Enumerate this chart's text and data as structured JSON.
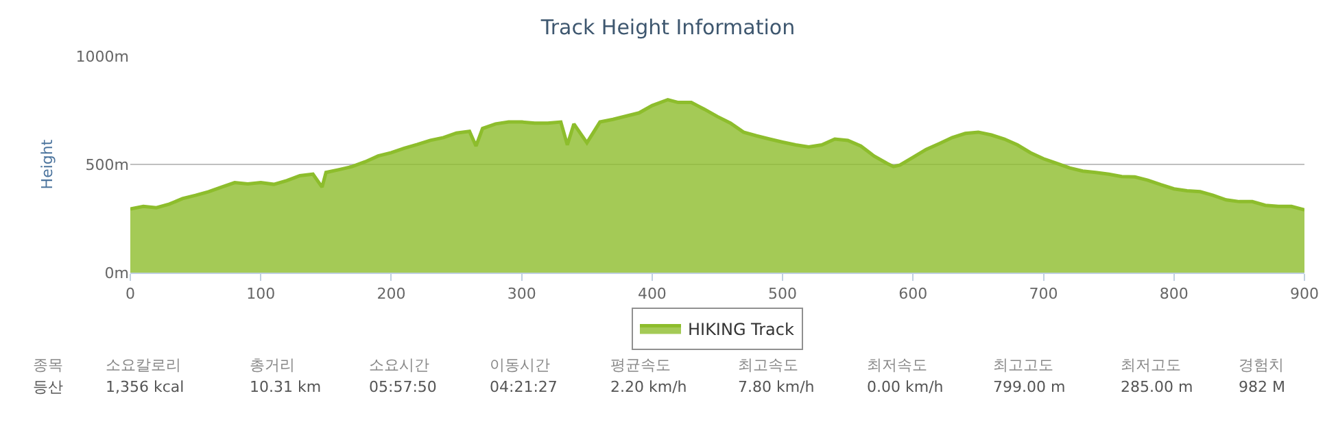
{
  "chart_data": {
    "type": "area",
    "title": "Track Height Information",
    "ylabel": "Height",
    "x": [
      0,
      10,
      20,
      30,
      40,
      50,
      60,
      70,
      80,
      90,
      100,
      110,
      120,
      130,
      140,
      147,
      150,
      160,
      170,
      180,
      190,
      200,
      210,
      220,
      230,
      240,
      250,
      260,
      265,
      270,
      280,
      290,
      300,
      310,
      320,
      330,
      335,
      340,
      350,
      360,
      370,
      380,
      390,
      400,
      412,
      420,
      430,
      440,
      450,
      460,
      470,
      480,
      490,
      500,
      510,
      520,
      530,
      540,
      550,
      560,
      570,
      580,
      585,
      590,
      600,
      610,
      620,
      630,
      640,
      650,
      660,
      670,
      680,
      690,
      700,
      710,
      720,
      730,
      740,
      750,
      760,
      770,
      780,
      790,
      800,
      810,
      820,
      830,
      840,
      850,
      860,
      870,
      880,
      890,
      900
    ],
    "series": [
      {
        "name": "HIKING Track",
        "color": "#8dbd2c",
        "values": [
          294,
          306,
          300,
          317,
          342,
          357,
          374,
          395,
          416,
          410,
          416,
          408,
          425,
          448,
          455,
          395,
          463,
          476,
          490,
          512,
          539,
          554,
          575,
          592,
          611,
          624,
          645,
          653,
          585,
          666,
          687,
          696,
          696,
          691,
          691,
          696,
          590,
          687,
          600,
          696,
          708,
          723,
          738,
          772,
          799,
          786,
          786,
          755,
          721,
          691,
          649,
          632,
          617,
          603,
          590,
          581,
          590,
          617,
          611,
          585,
          539,
          505,
          490,
          497,
          533,
          569,
          596,
          624,
          643,
          649,
          636,
          617,
          590,
          554,
          526,
          505,
          484,
          469,
          463,
          455,
          444,
          442,
          427,
          406,
          387,
          378,
          374,
          357,
          336,
          328,
          328,
          311,
          306,
          306,
          290
        ]
      }
    ],
    "xlim": [
      0,
      900
    ],
    "xticks": [
      0,
      100,
      200,
      300,
      400,
      500,
      600,
      700,
      800,
      900
    ],
    "ylim": [
      0,
      1000
    ],
    "yticks": [
      {
        "value": 0,
        "label": "0m"
      },
      {
        "value": 500,
        "label": "500m"
      },
      {
        "value": 1000,
        "label": "1000m"
      }
    ],
    "grid": "y",
    "legend": "bottom",
    "marker": "none",
    "annotations": [
      "종목",
      "등산",
      "소요칼로리",
      "1,356 kcal",
      "총거리",
      "10.31 km",
      "소요시간",
      "05:57:50",
      "이동시간",
      "04:21:27",
      "평균속도",
      "2.20 km/h",
      "최고속도",
      "7.80 km/h",
      "최저속도",
      "0.00 km/h",
      "최고고도",
      "799.00 m",
      "최저고도",
      "285.00 m",
      "경험치",
      "982 M"
    ]
  }
}
